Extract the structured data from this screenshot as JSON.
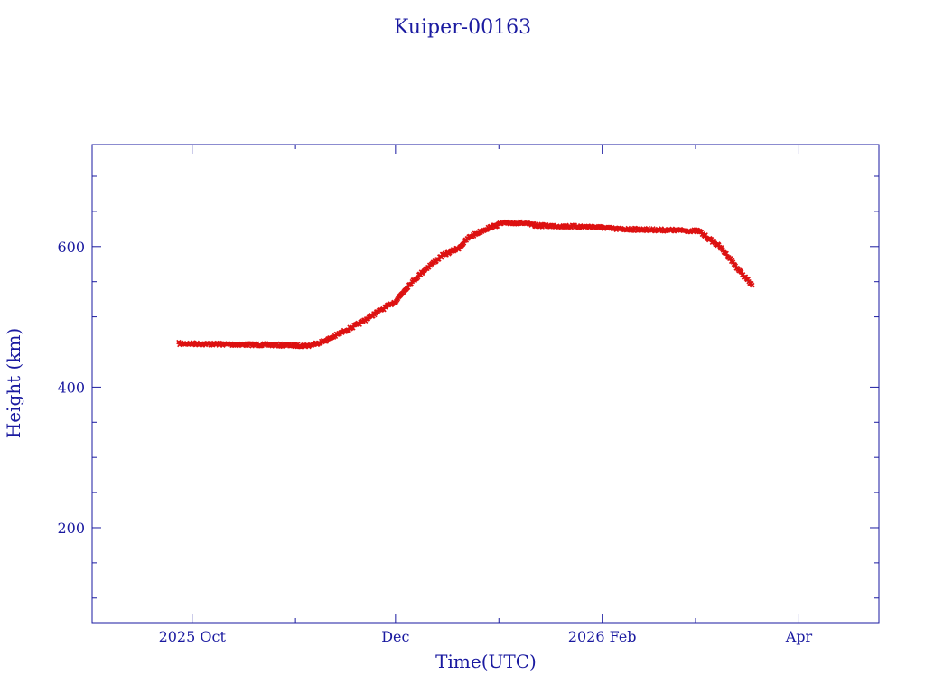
{
  "chart_data": {
    "type": "scatter",
    "title": "Kuiper-00163",
    "xlabel": "Time(UTC)",
    "ylabel": "Height (km)",
    "x_range": [
      "2025-09-01",
      "2026-04-25"
    ],
    "ylim": [
      65,
      745
    ],
    "x_ticks": [
      {
        "date": "2025-10-01",
        "label": "2025 Oct"
      },
      {
        "date": "2025-12-01",
        "label": "Dec"
      },
      {
        "date": "2026-02-01",
        "label": "2026 Feb"
      },
      {
        "date": "2026-04-01",
        "label": "Apr"
      }
    ],
    "x_minor_ticks": [
      "2025-09-01",
      "2025-11-01",
      "2026-01-01",
      "2026-03-01"
    ],
    "y_ticks": [
      200,
      400,
      600
    ],
    "y_minor_step": 50,
    "grid": false,
    "colors": {
      "axis": "#1a1aa0",
      "series": "#dd1111",
      "series_secondary": "#22bbcc"
    },
    "series": [
      {
        "points": [
          {
            "x": "2025-09-27",
            "y": 462
          },
          {
            "x": "2025-10-10",
            "y": 461
          },
          {
            "x": "2025-10-25",
            "y": 460
          },
          {
            "x": "2025-11-05",
            "y": 459
          },
          {
            "x": "2025-11-10",
            "y": 466
          },
          {
            "x": "2025-11-15",
            "y": 478
          },
          {
            "x": "2025-11-20",
            "y": 490
          },
          {
            "x": "2025-11-25",
            "y": 505
          },
          {
            "x": "2025-12-01",
            "y": 522
          },
          {
            "x": "2025-12-05",
            "y": 545
          },
          {
            "x": "2025-12-10",
            "y": 568
          },
          {
            "x": "2025-12-15",
            "y": 587
          },
          {
            "x": "2025-12-20",
            "y": 598
          },
          {
            "x": "2025-12-23",
            "y": 613
          },
          {
            "x": "2025-12-28",
            "y": 625
          },
          {
            "x": "2026-01-02",
            "y": 633
          },
          {
            "x": "2026-01-07",
            "y": 634
          },
          {
            "x": "2026-01-12",
            "y": 630
          },
          {
            "x": "2026-01-20",
            "y": 629
          },
          {
            "x": "2026-01-30",
            "y": 628
          },
          {
            "x": "2026-02-05",
            "y": 625
          },
          {
            "x": "2026-02-15",
            "y": 624
          },
          {
            "x": "2026-02-25",
            "y": 623
          },
          {
            "x": "2026-03-02",
            "y": 622
          },
          {
            "x": "2026-03-05",
            "y": 611
          },
          {
            "x": "2026-03-08",
            "y": 601
          },
          {
            "x": "2026-03-11",
            "y": 585
          },
          {
            "x": "2026-03-14",
            "y": 566
          },
          {
            "x": "2026-03-18",
            "y": 545
          }
        ]
      }
    ]
  }
}
